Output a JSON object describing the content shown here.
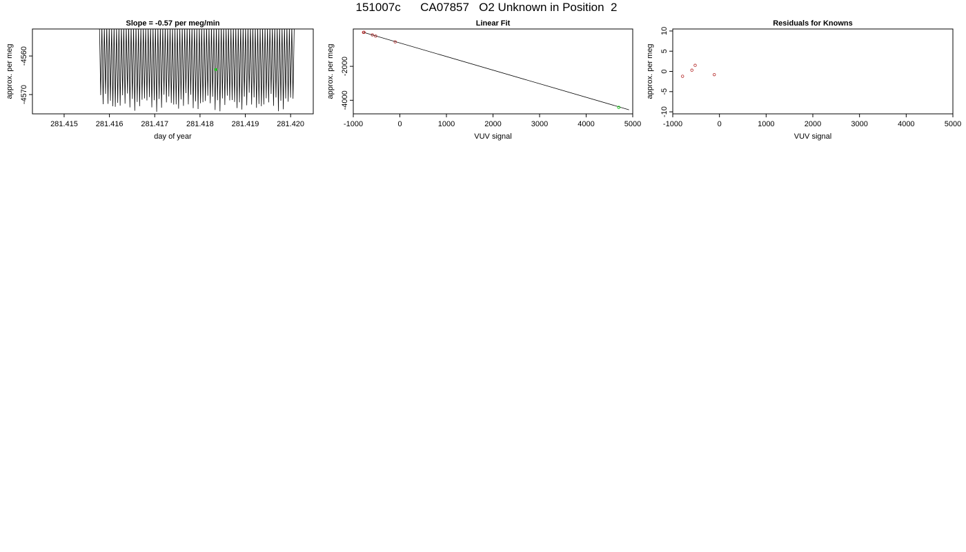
{
  "page": {
    "title": "151007c      CA07857   O2 Unknown in Position  2"
  },
  "colors": {
    "axis": "#000000",
    "trace": "#000000",
    "known_points": "#b22222",
    "unknown_point": "#22cc22"
  },
  "chart_data": [
    {
      "type": "line",
      "title": "Slope =  -0.57  per meg/min",
      "xlabel": "day of year",
      "ylabel": "approx. per meg",
      "xlim": [
        281.4143,
        281.4205
      ],
      "ylim": [
        -4575,
        -4553
      ],
      "x_ticks": [
        281.415,
        281.416,
        281.417,
        281.418,
        281.419,
        281.42
      ],
      "x_tick_labels": [
        "281.415",
        "281.416",
        "281.417",
        "281.418",
        "281.419",
        "281.420"
      ],
      "y_ticks": [
        -4560,
        -4570
      ],
      "y_tick_labels": [
        "-4560",
        "-4570"
      ],
      "series": [
        {
          "kind": "oscillating trace",
          "x_start": 281.41578,
          "x_end": 281.42008,
          "cycles": 80,
          "upper_envelope": -4553,
          "lower_envelope": -4572
        }
      ],
      "highlight_point": {
        "x": 281.41835,
        "y": -4563.5
      }
    },
    {
      "type": "scatter",
      "title": "Linear Fit",
      "xlabel": "VUV signal",
      "ylabel": "approx. per meg",
      "xlim": [
        -1000,
        5000
      ],
      "ylim": [
        -4800,
        200
      ],
      "x_ticks": [
        -1000,
        0,
        1000,
        2000,
        3000,
        4000,
        5000
      ],
      "x_tick_labels": [
        "-1000",
        "0",
        "1000",
        "2000",
        "3000",
        "4000",
        "5000"
      ],
      "y_ticks": [
        -2000,
        -4000
      ],
      "y_tick_labels": [
        "-2000",
        "-4000"
      ],
      "fit_line": {
        "x": [
          -780,
          4920
        ],
        "y": [
          0,
          -4560
        ]
      },
      "known_points": {
        "x": [
          -780,
          -770,
          -590,
          -520,
          -100
        ],
        "y": [
          0,
          5,
          -150,
          -220,
          -560
        ]
      },
      "unknown_point": {
        "x": 4700,
        "y": -4420
      }
    },
    {
      "type": "scatter",
      "title": "Residuals for Knowns",
      "xlabel": "VUV signal",
      "ylabel": "approx. per meg",
      "xlim": [
        -1000,
        5000
      ],
      "ylim": [
        -10.5,
        10.5
      ],
      "x_ticks": [
        -1000,
        0,
        1000,
        2000,
        3000,
        4000,
        5000
      ],
      "x_tick_labels": [
        "-1000",
        "0",
        "1000",
        "2000",
        "3000",
        "4000",
        "5000"
      ],
      "y_ticks": [
        10,
        5,
        0,
        -5,
        -10
      ],
      "y_tick_labels": [
        "10",
        "5",
        "0",
        "-5",
        "-10"
      ],
      "points": {
        "x": [
          -790,
          -590,
          -520,
          -110
        ],
        "y": [
          -1.2,
          0.3,
          1.5,
          -0.8
        ]
      }
    }
  ]
}
